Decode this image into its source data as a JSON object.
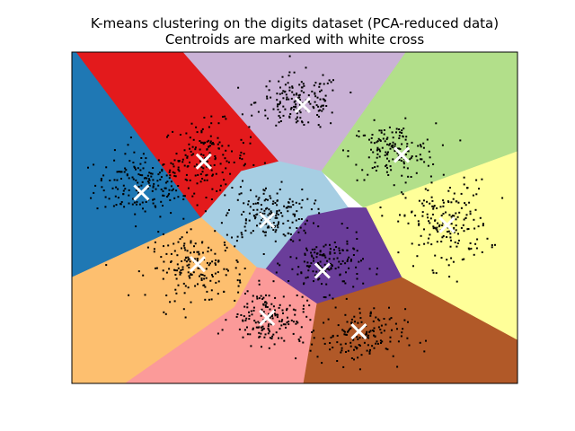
{
  "chart_data": {
    "type": "scatter",
    "title": [
      "K-means clustering on the digits dataset (PCA-reduced data)",
      "Centroids are marked with white cross"
    ],
    "xlabel": "",
    "ylabel": "",
    "xticks": "none",
    "yticks": "none",
    "xlim": [
      0,
      100
    ],
    "ylim": [
      0,
      100
    ],
    "grid": false,
    "legend": "none",
    "n_clusters": 10,
    "centroid_marker": "x",
    "centroid_color": "#ffffff",
    "point_color": "#000000",
    "centroids": [
      {
        "x": 15.6,
        "y": 57.6
      },
      {
        "x": 29.6,
        "y": 67.0
      },
      {
        "x": 51.8,
        "y": 84.0
      },
      {
        "x": 74.0,
        "y": 69.0
      },
      {
        "x": 43.8,
        "y": 49.2
      },
      {
        "x": 84.2,
        "y": 47.8
      },
      {
        "x": 28.2,
        "y": 36.0
      },
      {
        "x": 56.2,
        "y": 34.0
      },
      {
        "x": 43.8,
        "y": 19.8
      },
      {
        "x": 64.4,
        "y": 15.7
      }
    ],
    "regions": [
      {
        "color": "#1f78b4",
        "polygon": [
          [
            0,
            100
          ],
          [
            1,
            100
          ],
          [
            29,
            50
          ],
          [
            0,
            32
          ]
        ]
      },
      {
        "color": "#e31a1c",
        "polygon": [
          [
            1,
            100
          ],
          [
            25,
            100
          ],
          [
            46.5,
            67
          ],
          [
            38,
            64
          ],
          [
            29,
            50
          ]
        ]
      },
      {
        "color": "#cab2d6",
        "polygon": [
          [
            25,
            100
          ],
          [
            75,
            100
          ],
          [
            56,
            64
          ],
          [
            46.5,
            67
          ]
        ]
      },
      {
        "color": "#b2df8a",
        "polygon": [
          [
            75,
            100
          ],
          [
            100,
            100
          ],
          [
            100,
            70
          ],
          [
            65.5,
            53
          ],
          [
            56,
            64
          ]
        ]
      },
      {
        "color": "#a6cee3",
        "polygon": [
          [
            46.5,
            67
          ],
          [
            56,
            64
          ],
          [
            62,
            53
          ],
          [
            53,
            50.5
          ],
          [
            43.5,
            34.5
          ],
          [
            41.5,
            35
          ],
          [
            29,
            50
          ],
          [
            38,
            64
          ]
        ]
      },
      {
        "color": "#ffff99",
        "polygon": [
          [
            65.5,
            53
          ],
          [
            100,
            70
          ],
          [
            100,
            13
          ],
          [
            74,
            32
          ],
          [
            66,
            53
          ]
        ]
      },
      {
        "color": "#fdbf6f",
        "polygon": [
          [
            0,
            32
          ],
          [
            29,
            50
          ],
          [
            41.5,
            35
          ],
          [
            36.5,
            23
          ],
          [
            12,
            0
          ],
          [
            0,
            0
          ]
        ]
      },
      {
        "color": "#6a3d9a",
        "polygon": [
          [
            62,
            53
          ],
          [
            66,
            53
          ],
          [
            74,
            32
          ],
          [
            55,
            24
          ],
          [
            43.5,
            34.5
          ],
          [
            53,
            50.5
          ]
        ]
      },
      {
        "color": "#fb9a99",
        "polygon": [
          [
            41.5,
            35
          ],
          [
            43.5,
            34.5
          ],
          [
            55,
            24
          ],
          [
            52,
            0
          ],
          [
            12,
            0
          ],
          [
            36.5,
            23
          ]
        ]
      },
      {
        "color": "#b15928",
        "polygon": [
          [
            55,
            24
          ],
          [
            74,
            32
          ],
          [
            100,
            13
          ],
          [
            100,
            0
          ],
          [
            52,
            0
          ]
        ]
      }
    ],
    "clusters": [
      {
        "center": [
          16,
          60
        ],
        "spread": [
          9,
          8
        ],
        "count": 170
      },
      {
        "center": [
          30,
          68
        ],
        "spread": [
          8,
          9
        ],
        "count": 160
      },
      {
        "center": [
          51,
          85
        ],
        "spread": [
          8,
          7
        ],
        "count": 160
      },
      {
        "center": [
          72,
          70
        ],
        "spread": [
          8,
          7
        ],
        "count": 150
      },
      {
        "center": [
          44,
          51
        ],
        "spread": [
          8,
          7
        ],
        "count": 170
      },
      {
        "center": [
          84,
          48
        ],
        "spread": [
          8,
          11
        ],
        "count": 180
      },
      {
        "center": [
          28,
          35
        ],
        "spread": [
          9,
          8
        ],
        "count": 170
      },
      {
        "center": [
          57,
          36
        ],
        "spread": [
          7,
          7
        ],
        "count": 150
      },
      {
        "center": [
          44,
          20
        ],
        "spread": [
          7,
          7
        ],
        "count": 160
      },
      {
        "center": [
          64,
          14
        ],
        "spread": [
          9,
          7
        ],
        "count": 150
      }
    ]
  }
}
